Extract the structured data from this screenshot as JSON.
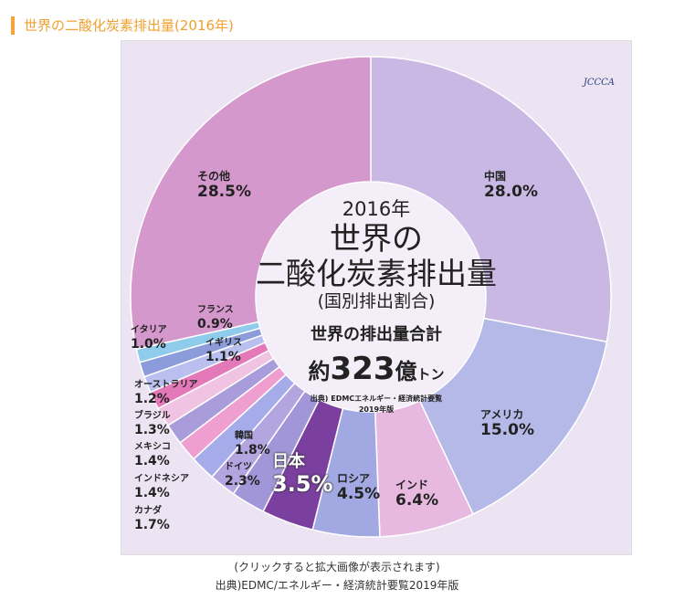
{
  "page_title": "世界の二酸化炭素排出量(2016年)",
  "caption_click": "(クリックすると拡大画像が表示されます)",
  "caption_source": "出典)EDMC/エネルギー・経済統計要覧2019年版",
  "logo": "JCCCA",
  "center": {
    "year": "2016年",
    "title1": "世界の",
    "title2": "二酸化炭素排出量",
    "subtitle": "(国別排出割合)",
    "total_label": "世界の排出量合計",
    "total_prefix": "約",
    "total_value": "323",
    "total_unit": "億",
    "total_unit2": "トン",
    "source": "出典) EDMCエネルギー・経済統計要覧",
    "source2": "2019年版"
  },
  "chart_data": {
    "type": "pie",
    "donut": true,
    "title": "2016年 世界の二酸化炭素排出量(国別排出割合)",
    "unit": "%",
    "slices": [
      {
        "name": "中国",
        "value": 28.0,
        "label": "28.0%",
        "color": "#c9b8e3"
      },
      {
        "name": "アメリカ",
        "value": 15.0,
        "label": "15.0%",
        "color": "#b4b9e8"
      },
      {
        "name": "インド",
        "value": 6.4,
        "label": "6.4%",
        "color": "#e7b9e0"
      },
      {
        "name": "ロシア",
        "value": 4.5,
        "label": "4.5%",
        "color": "#a2a9e2"
      },
      {
        "name": "日本",
        "value": 3.5,
        "label": "3.5%",
        "color": "#7a3f9f"
      },
      {
        "name": "ドイツ",
        "value": 2.3,
        "label": "2.3%",
        "color": "#a197d8"
      },
      {
        "name": "韓国",
        "value": 1.8,
        "label": "1.8%",
        "color": "#b3a5e0"
      },
      {
        "name": "カナダ",
        "value": 1.7,
        "label": "1.7%",
        "color": "#a6acea"
      },
      {
        "name": "インドネシア",
        "value": 1.4,
        "label": "1.4%",
        "color": "#ee9fd0"
      },
      {
        "name": "メキシコ",
        "value": 1.4,
        "label": "1.4%",
        "color": "#a89cdb"
      },
      {
        "name": "ブラジル",
        "value": 1.3,
        "label": "1.3%",
        "color": "#f1c3e2"
      },
      {
        "name": "オーストラリア",
        "value": 1.2,
        "label": "1.2%",
        "color": "#e379b8"
      },
      {
        "name": "イギリス",
        "value": 1.1,
        "label": "1.1%",
        "color": "#b9bfee"
      },
      {
        "name": "イタリア",
        "value": 1.0,
        "label": "1.0%",
        "color": "#8c9cdb"
      },
      {
        "name": "フランス",
        "value": 0.9,
        "label": "0.9%",
        "color": "#8fcbea"
      },
      {
        "name": "その他",
        "value": 28.5,
        "label": "28.5%",
        "color": "#d598cd"
      }
    ]
  }
}
